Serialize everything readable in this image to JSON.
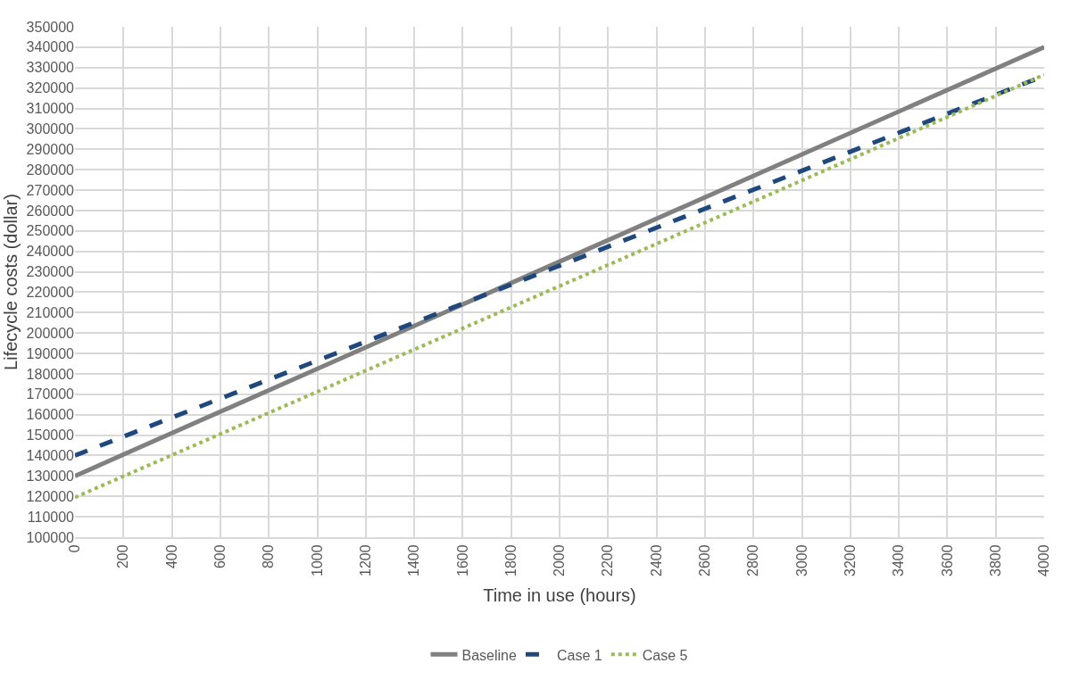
{
  "chart_data": {
    "type": "line",
    "xlabel": "Time in use (hours)",
    "ylabel": "Lifecycle costs (dollar)",
    "xlim": [
      0,
      4000
    ],
    "xticks": [
      0,
      200,
      400,
      600,
      800,
      1000,
      1200,
      1400,
      1600,
      1800,
      2000,
      2200,
      2400,
      2600,
      2800,
      3000,
      3200,
      3400,
      3600,
      3800,
      4000
    ],
    "ylim": [
      100000,
      350000
    ],
    "yticks": [
      100000,
      110000,
      120000,
      130000,
      140000,
      150000,
      160000,
      170000,
      180000,
      190000,
      200000,
      210000,
      220000,
      230000,
      240000,
      250000,
      260000,
      270000,
      280000,
      290000,
      300000,
      310000,
      320000,
      330000,
      340000,
      350000
    ],
    "grid": true,
    "legend": "bottom",
    "series": [
      {
        "name": "Baseline",
        "color": "#808080",
        "line_style": "solid",
        "x": [
          0,
          2000,
          4000
        ],
        "values": [
          130000,
          235000,
          340000
        ]
      },
      {
        "name": "Case 1",
        "color": "#1f497d",
        "line_style": "dashed",
        "x": [
          0,
          2000,
          4000
        ],
        "values": [
          140000,
          233000,
          326000
        ]
      },
      {
        "name": "Case 5",
        "color": "#9bbb59",
        "line_style": "dotted",
        "x": [
          0,
          2000,
          4000
        ],
        "values": [
          119500,
          223000,
          326500
        ]
      }
    ]
  }
}
